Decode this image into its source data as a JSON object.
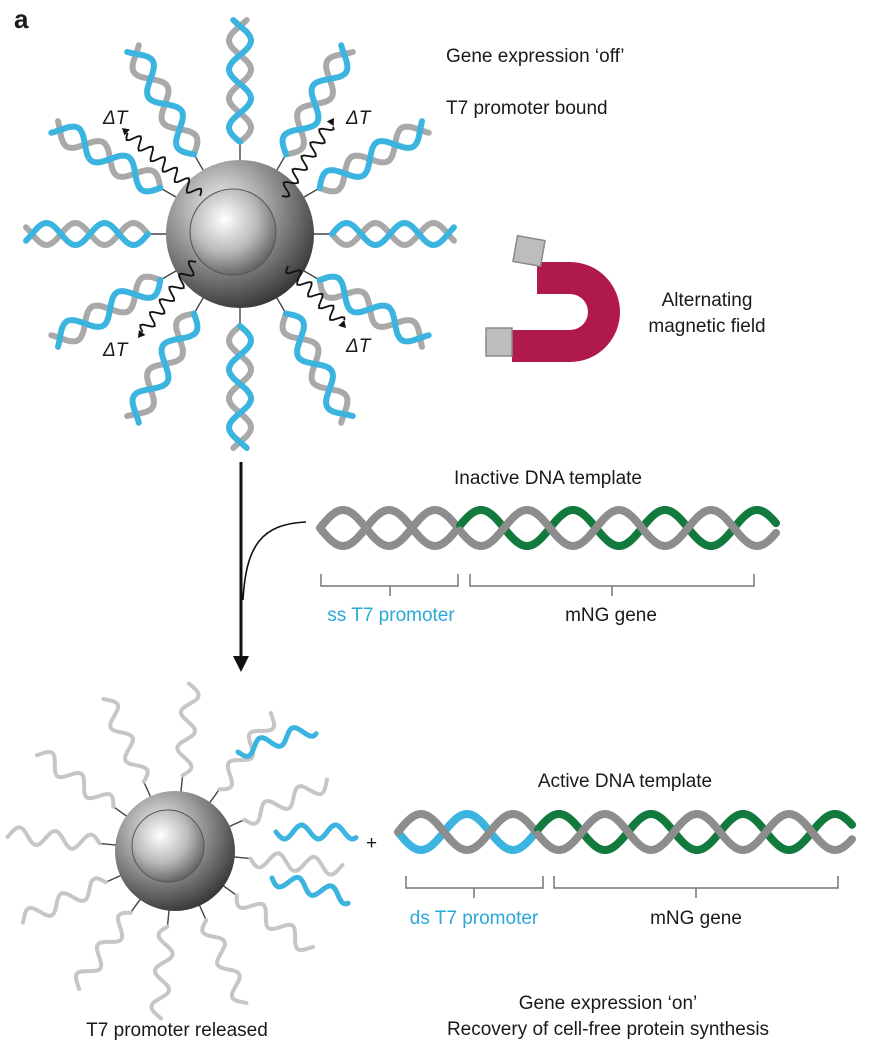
{
  "panel_label": "a",
  "top": {
    "state": "Gene expression ‘off’",
    "binding": "T7 promoter bound",
    "delta_t": "ΔT",
    "magnet_label_line1": "Alternating",
    "magnet_label_line2": "magnetic field"
  },
  "inactive": {
    "title": "Inactive DNA template",
    "promoter": "ss T7 promoter",
    "gene": "mNG gene"
  },
  "active": {
    "plus": "+",
    "title": "Active DNA template",
    "promoter": "ds T7 promoter",
    "gene": "mNG gene"
  },
  "bottom": {
    "released": "T7 promoter released",
    "state": "Gene expression ‘on’",
    "recovery": "Recovery of cell-free protein synthesis"
  },
  "colors": {
    "cyan_strand": "#3bb4e0",
    "grey_strand": "#a9a9a9",
    "gene_green": "#137a3e",
    "magnet": "#b0194b"
  }
}
